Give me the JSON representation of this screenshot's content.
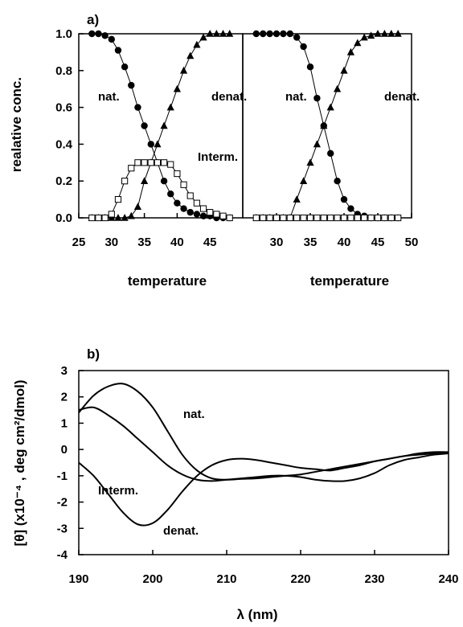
{
  "chart_data": [
    {
      "type": "scatter",
      "panel_label": "a)",
      "ylabel": "realative conc.",
      "ylim": [
        0,
        1.0
      ],
      "yticks": [
        "0.0",
        "0.2",
        "0.4",
        "0.6",
        "0.8",
        "1.0"
      ],
      "grid": false,
      "subplots": [
        {
          "xlabel": "temperature",
          "xlim": [
            25,
            50
          ],
          "xticks": [
            "25",
            "30",
            "35",
            "40",
            "45"
          ],
          "x": [
            27,
            28,
            29,
            30,
            31,
            32,
            33,
            34,
            35,
            36,
            37,
            38,
            39,
            40,
            41,
            42,
            43,
            44,
            45,
            46,
            47,
            48
          ],
          "series": [
            {
              "marker": "filled-circle",
              "values": [
                1.0,
                1.0,
                0.99,
                0.97,
                0.91,
                0.82,
                0.72,
                0.6,
                0.5,
                0.4,
                0.3,
                0.2,
                0.13,
                0.08,
                0.05,
                0.03,
                0.02,
                0.01,
                0.01,
                0.0,
                0.0,
                0.0
              ]
            },
            {
              "marker": "filled-triangle",
              "values": [
                0.0,
                0.0,
                0.0,
                0.0,
                0.0,
                0.0,
                0.01,
                0.06,
                0.2,
                0.3,
                0.4,
                0.5,
                0.6,
                0.7,
                0.8,
                0.88,
                0.94,
                0.98,
                1.0,
                1.0,
                1.0,
                1.0
              ]
            },
            {
              "marker": "open-square",
              "values": [
                0.0,
                0.0,
                0.0,
                0.02,
                0.1,
                0.2,
                0.27,
                0.3,
                0.3,
                0.3,
                0.3,
                0.3,
                0.29,
                0.24,
                0.18,
                0.12,
                0.08,
                0.05,
                0.03,
                0.02,
                0.01,
                0.0
              ]
            }
          ],
          "annotations": [
            "nat.",
            "denat.",
            "Interm."
          ]
        },
        {
          "xlabel": "temperature",
          "xlim": [
            25,
            50
          ],
          "xticks": [
            "30",
            "35",
            "40",
            "45",
            "50"
          ],
          "x": [
            27,
            28,
            29,
            30,
            31,
            32,
            33,
            34,
            35,
            36,
            37,
            38,
            39,
            40,
            41,
            42,
            43,
            44,
            45,
            46,
            47,
            48
          ],
          "series": [
            {
              "marker": "filled-circle",
              "values": [
                1.0,
                1.0,
                1.0,
                1.0,
                1.0,
                1.0,
                0.98,
                0.93,
                0.82,
                0.65,
                0.5,
                0.35,
                0.2,
                0.1,
                0.05,
                0.02,
                0.01,
                0.0,
                0.0,
                0.0,
                0.0,
                0.0
              ]
            },
            {
              "marker": "filled-triangle",
              "values": [
                0.0,
                0.0,
                0.0,
                0.0,
                0.0,
                0.0,
                0.1,
                0.2,
                0.3,
                0.4,
                0.5,
                0.6,
                0.7,
                0.8,
                0.9,
                0.95,
                0.98,
                0.99,
                1.0,
                1.0,
                1.0,
                1.0
              ]
            },
            {
              "marker": "open-square",
              "values": [
                0.0,
                0.0,
                0.0,
                0.0,
                0.0,
                0.0,
                0.0,
                0.0,
                0.0,
                0.0,
                0.0,
                0.0,
                0.0,
                0.0,
                0.0,
                0.0,
                0.0,
                0.0,
                0.0,
                0.0,
                0.0,
                0.0
              ]
            }
          ],
          "annotations": [
            "nat.",
            "denat."
          ]
        }
      ]
    },
    {
      "type": "line",
      "panel_label": "b)",
      "xlabel": "λ (nm)",
      "ylabel": "[θ] (x10⁻⁴ , deg cm²/dmol)",
      "xlim": [
        190,
        240
      ],
      "ylim": [
        -4,
        3
      ],
      "xticks": [
        "190",
        "200",
        "210",
        "220",
        "230",
        "240"
      ],
      "yticks": [
        "-4",
        "-3",
        "-2",
        "-1",
        "0",
        "1",
        "2",
        "3"
      ],
      "grid": false,
      "x": [
        190,
        192,
        194,
        196,
        198,
        200,
        202,
        204,
        206,
        208,
        210,
        212,
        214,
        216,
        218,
        220,
        222,
        224,
        226,
        228,
        230,
        232,
        234,
        236,
        238,
        240
      ],
      "series": [
        {
          "label": "nat.",
          "values": [
            1.4,
            2.05,
            2.4,
            2.5,
            2.2,
            1.6,
            0.7,
            -0.2,
            -0.8,
            -1.1,
            -1.15,
            -1.12,
            -1.1,
            -1.05,
            -1.0,
            -0.95,
            -0.85,
            -0.75,
            -0.65,
            -0.55,
            -0.45,
            -0.35,
            -0.25,
            -0.2,
            -0.15,
            -0.1
          ]
        },
        {
          "label": "Interm.",
          "values": [
            1.5,
            1.6,
            1.3,
            0.9,
            0.4,
            -0.1,
            -0.6,
            -0.95,
            -1.15,
            -1.2,
            -1.15,
            -1.1,
            -1.05,
            -1.0,
            -1.0,
            -1.05,
            -1.15,
            -1.2,
            -1.2,
            -1.1,
            -0.9,
            -0.6,
            -0.4,
            -0.3,
            -0.2,
            -0.15
          ]
        },
        {
          "label": "denat.",
          "values": [
            -0.5,
            -1.0,
            -1.7,
            -2.4,
            -2.85,
            -2.8,
            -2.3,
            -1.6,
            -1.0,
            -0.6,
            -0.4,
            -0.35,
            -0.4,
            -0.5,
            -0.6,
            -0.7,
            -0.75,
            -0.8,
            -0.7,
            -0.6,
            -0.45,
            -0.35,
            -0.25,
            -0.15,
            -0.1,
            -0.1
          ]
        }
      ]
    }
  ]
}
